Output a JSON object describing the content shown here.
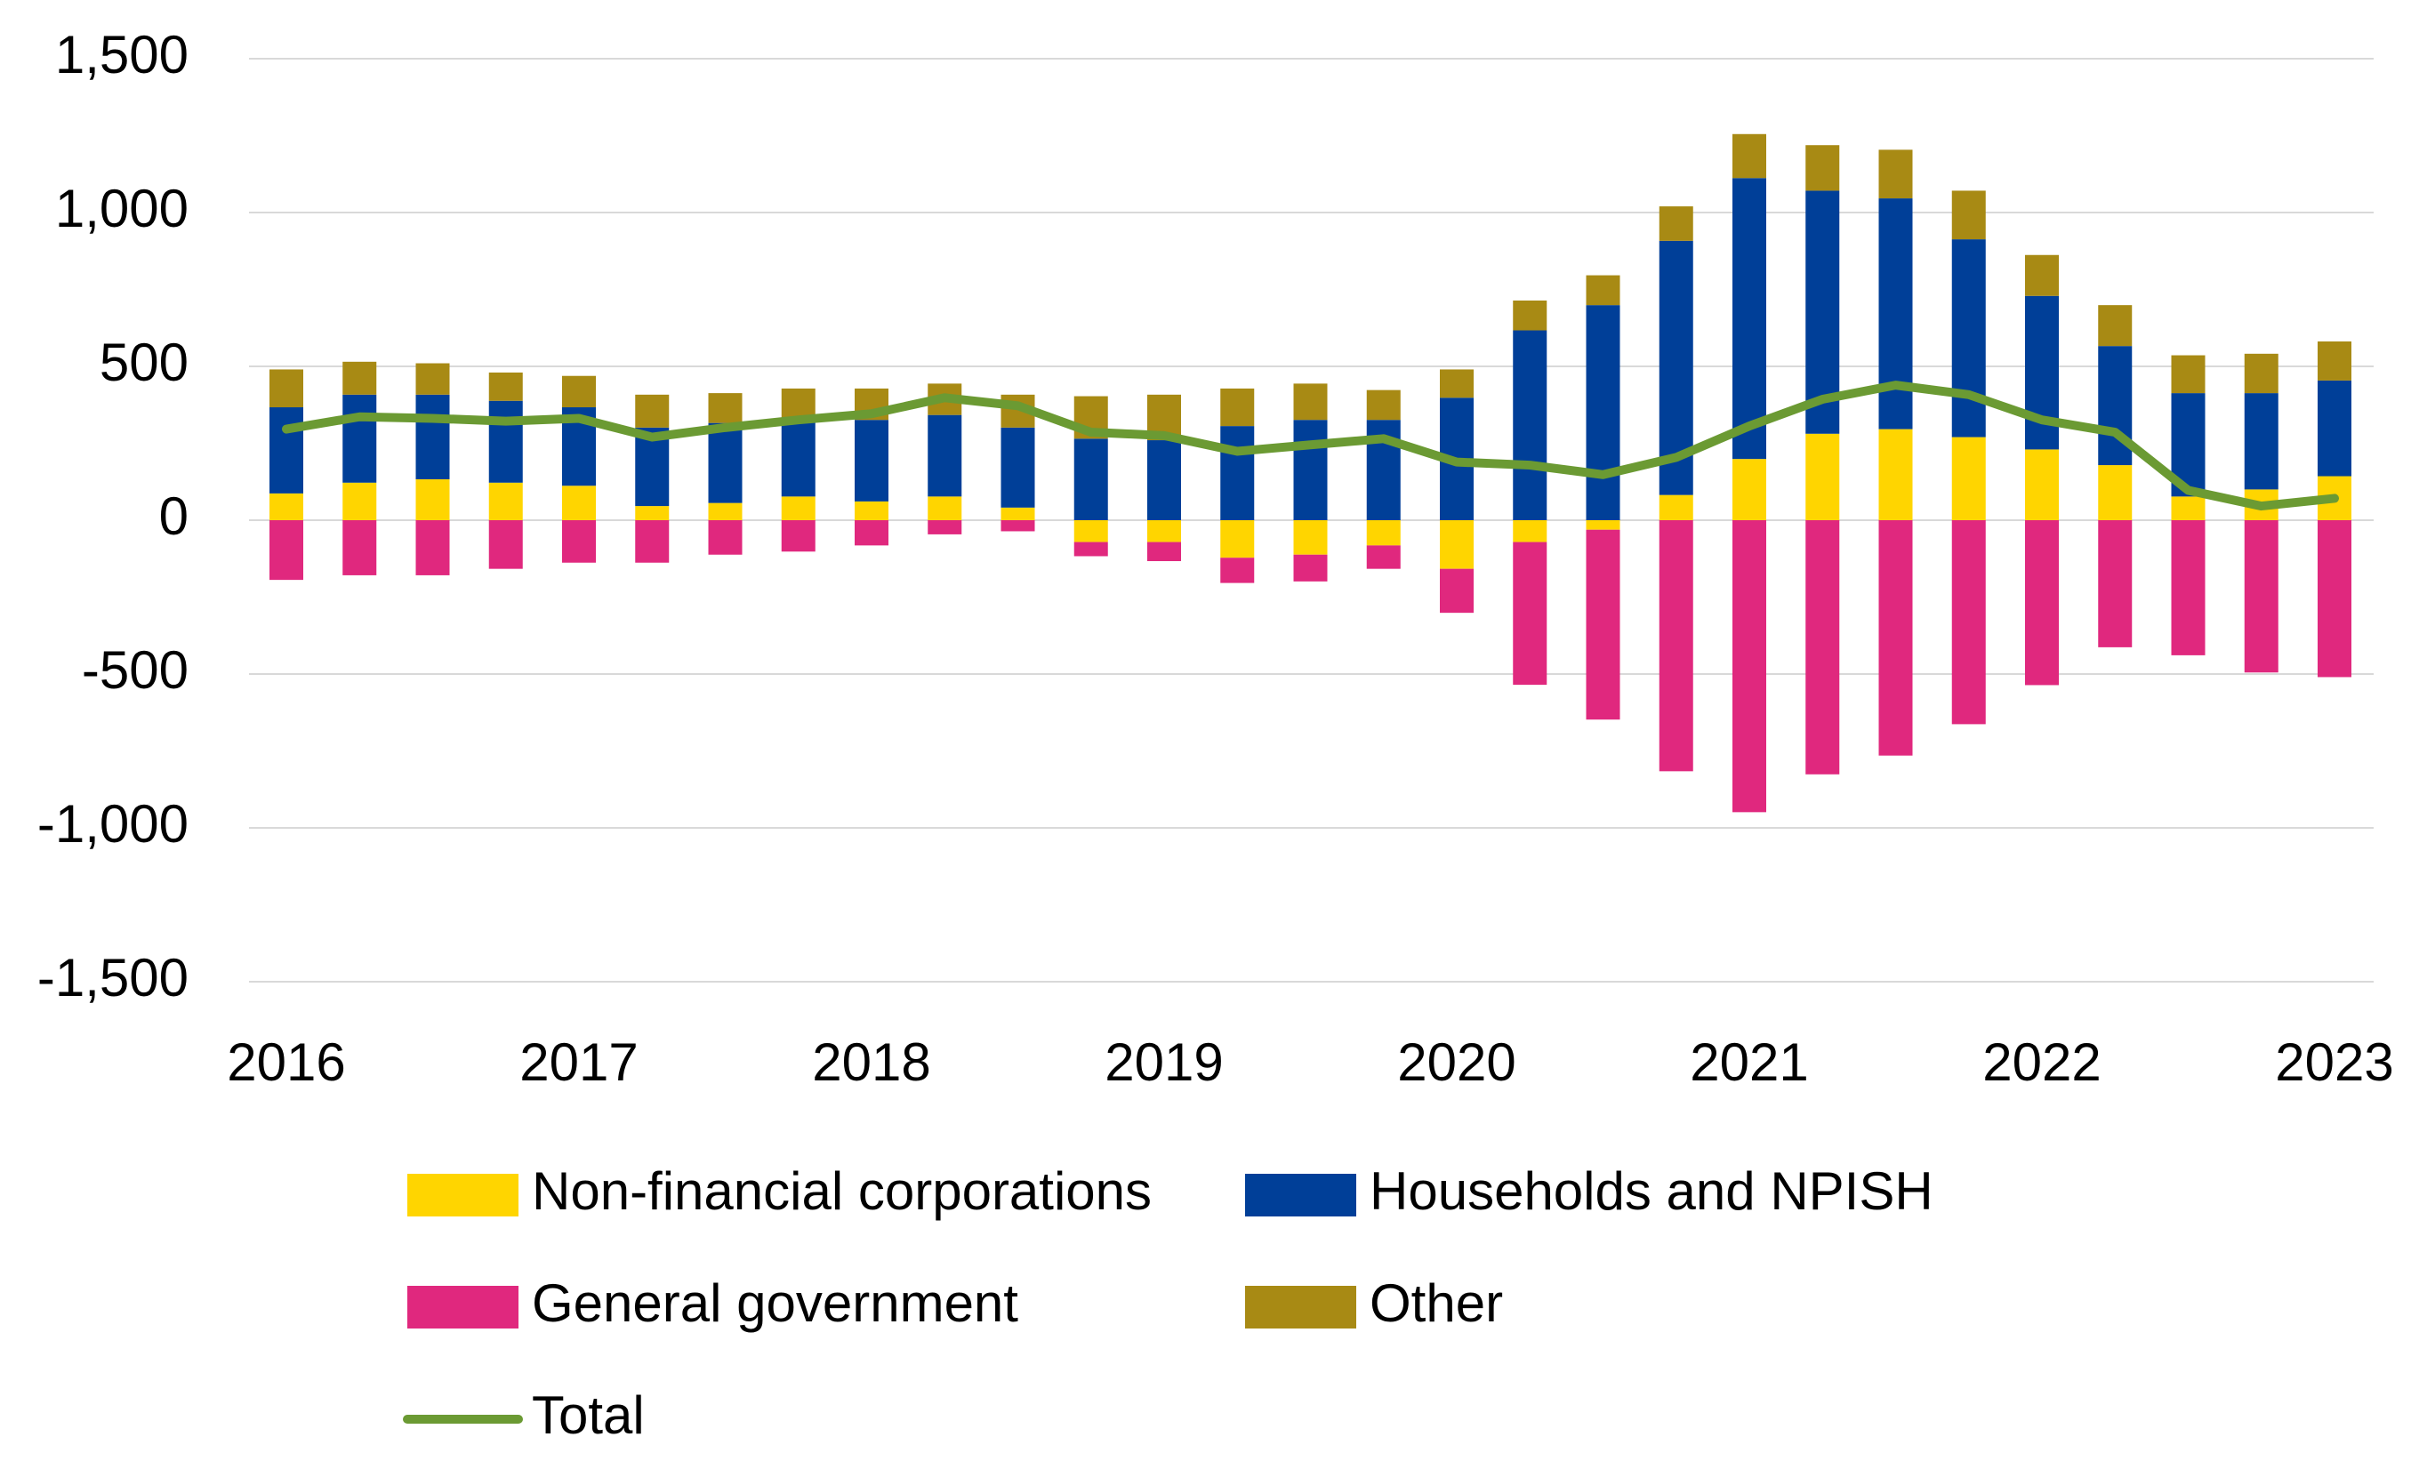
{
  "chart_data": {
    "type": "bar",
    "categories": [
      "2016",
      null,
      null,
      null,
      "2017",
      null,
      null,
      null,
      "2018",
      null,
      null,
      null,
      "2019",
      null,
      null,
      null,
      "2020",
      null,
      null,
      null,
      "2021",
      null,
      null,
      null,
      "2022",
      null,
      null,
      null,
      "2023"
    ],
    "series": [
      {
        "name": "Non-financial corporations",
        "color": "#ffd500",
        "values": [
          87,
          122,
          133,
          122,
          112,
          46,
          56,
          77,
          61,
          77,
          41,
          -71,
          -71,
          -122,
          -112,
          -82,
          -158,
          -71,
          -31,
          82,
          199,
          281,
          296,
          270,
          230,
          179,
          77,
          100,
          143
        ]
      },
      {
        "name": "Households and NPISH",
        "color": "#003f98",
        "values": [
          280,
          286,
          275,
          266,
          255,
          255,
          260,
          249,
          265,
          265,
          260,
          265,
          260,
          306,
          326,
          326,
          398,
          617,
          699,
          826,
          913,
          790,
          750,
          643,
          499,
          387,
          336,
          313,
          311
        ]
      },
      {
        "name": "General government",
        "color": "#e0287e",
        "values": [
          -194,
          -179,
          -179,
          -158,
          -138,
          -138,
          -112,
          -102,
          -82,
          -46,
          -36,
          -46,
          -62,
          -82,
          -87,
          -76,
          -143,
          -464,
          -617,
          -816,
          -949,
          -826,
          -765,
          -663,
          -536,
          -413,
          -439,
          -495,
          -510
        ]
      },
      {
        "name": "Other",
        "color": "#a88a14",
        "values": [
          123,
          107,
          102,
          92,
          102,
          107,
          97,
          102,
          102,
          102,
          107,
          138,
          148,
          122,
          118,
          97,
          92,
          97,
          97,
          112,
          143,
          148,
          158,
          158,
          133,
          133,
          123,
          128,
          127
        ]
      },
      {
        "name": "Total",
        "type": "line",
        "color": "#6b9a33",
        "values": [
          296,
          336,
          331,
          322,
          331,
          270,
          301,
          326,
          346,
          398,
          372,
          286,
          275,
          224,
          245,
          265,
          189,
          179,
          148,
          204,
          306,
          393,
          439,
          408,
          326,
          286,
          97,
          46,
          71
        ]
      }
    ],
    "ylim": [
      -1500,
      1500
    ],
    "yticks": [
      {
        "value": -1500,
        "label": "-1,500"
      },
      {
        "value": -1000,
        "label": "-1,000"
      },
      -500,
      0,
      500,
      {
        "value": 1000,
        "label": "1,000"
      },
      {
        "value": 1500,
        "label": "1,500"
      }
    ],
    "grid": true
  }
}
